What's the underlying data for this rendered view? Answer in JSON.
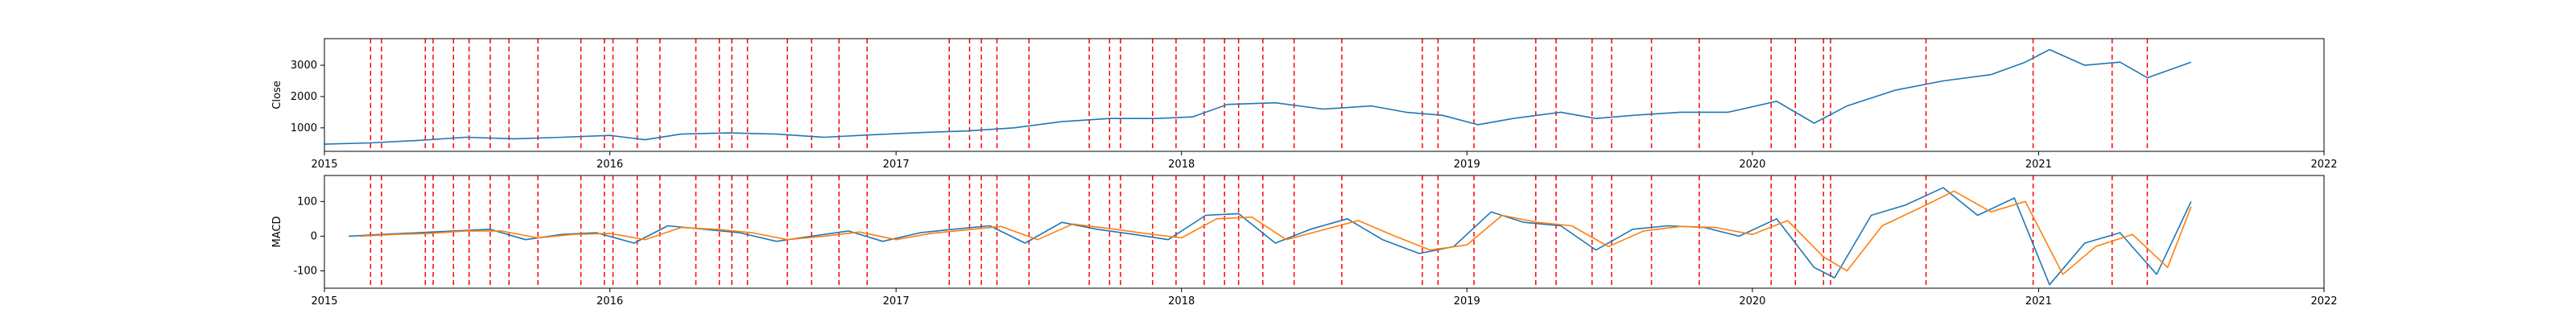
{
  "chart_data": [
    {
      "type": "line",
      "ylabel": "Close",
      "xlim": [
        "2015-01-01",
        "2022-01-01"
      ],
      "ylim": [
        250,
        3850
      ],
      "yticks": [
        1000,
        2000,
        3000
      ],
      "xtick_labels": [
        "2015",
        "2016",
        "2017",
        "2018",
        "2019",
        "2020",
        "2021",
        "2022"
      ],
      "grid": false,
      "series": [
        {
          "color": "#1f77b4",
          "x": [
            "2015-01-01",
            "2015-03-01",
            "2015-05-01",
            "2015-07-01",
            "2015-09-01",
            "2015-11-01",
            "2016-01-01",
            "2016-02-15",
            "2016-04-01",
            "2016-06-01",
            "2016-08-01",
            "2016-10-01",
            "2016-12-01",
            "2017-02-01",
            "2017-04-01",
            "2017-06-01",
            "2017-08-01",
            "2017-10-01",
            "2017-12-01",
            "2018-01-15",
            "2018-03-01",
            "2018-05-01",
            "2018-07-01",
            "2018-09-01",
            "2018-10-15",
            "2018-12-01",
            "2019-01-15",
            "2019-03-01",
            "2019-05-01",
            "2019-06-15",
            "2019-08-01",
            "2019-10-01",
            "2019-12-01",
            "2020-02-01",
            "2020-03-20",
            "2020-05-01",
            "2020-07-01",
            "2020-09-01",
            "2020-11-01",
            "2020-12-15",
            "2021-01-15",
            "2021-03-01",
            "2021-04-15",
            "2021-05-20",
            "2021-07-15"
          ],
          "values": [
            480,
            520,
            600,
            700,
            650,
            700,
            760,
            620,
            800,
            840,
            800,
            700,
            780,
            850,
            900,
            1000,
            1200,
            1300,
            1300,
            1350,
            1750,
            1800,
            1600,
            1700,
            1500,
            1400,
            1100,
            1300,
            1500,
            1300,
            1400,
            1500,
            1500,
            1850,
            1150,
            1700,
            2200,
            2500,
            2700,
            3100,
            3500,
            3000,
            3100,
            2600,
            3100
          ]
        }
      ],
      "event_lines": [
        "2015-03-01",
        "2015-03-15",
        "2015-05-10",
        "2015-05-20",
        "2015-06-15",
        "2015-07-05",
        "2015-08-01",
        "2015-08-25",
        "2015-10-01",
        "2015-11-25",
        "2015-12-25",
        "2016-01-05",
        "2016-02-05",
        "2016-03-05",
        "2016-04-20",
        "2016-05-20",
        "2016-06-05",
        "2016-06-25",
        "2016-08-15",
        "2016-09-15",
        "2016-10-20",
        "2016-11-25",
        "2017-03-10",
        "2017-04-05",
        "2017-04-20",
        "2017-05-10",
        "2017-06-20",
        "2017-09-05",
        "2017-10-01",
        "2017-10-15",
        "2017-11-25",
        "2017-12-25",
        "2018-01-30",
        "2018-02-25",
        "2018-03-15",
        "2018-04-15",
        "2018-05-25",
        "2018-07-25",
        "2018-11-05",
        "2018-11-25",
        "2019-01-10",
        "2019-03-30",
        "2019-04-25",
        "2019-06-10",
        "2019-07-05",
        "2019-08-25",
        "2019-10-25",
        "2020-01-25",
        "2020-02-25",
        "2020-04-01",
        "2020-04-10",
        "2020-08-10",
        "2020-12-25",
        "2021-04-05",
        "2021-05-20"
      ]
    },
    {
      "type": "line",
      "ylabel": "MACD",
      "xlim": [
        "2015-01-01",
        "2022-01-01"
      ],
      "ylim": [
        -150,
        175
      ],
      "yticks": [
        -100,
        0,
        100
      ],
      "xtick_labels": [
        "2015",
        "2016",
        "2017",
        "2018",
        "2019",
        "2020",
        "2021",
        "2022"
      ],
      "grid": false,
      "series": [
        {
          "color": "#1f77b4",
          "x": [
            "2015-02-01",
            "2015-03-15",
            "2015-05-01",
            "2015-06-15",
            "2015-08-01",
            "2015-09-15",
            "2015-11-01",
            "2015-12-15",
            "2016-02-01",
            "2016-03-15",
            "2016-05-01",
            "2016-06-15",
            "2016-08-01",
            "2016-09-15",
            "2016-11-01",
            "2016-12-15",
            "2017-02-01",
            "2017-03-15",
            "2017-05-01",
            "2017-06-15",
            "2017-08-01",
            "2017-09-15",
            "2017-11-01",
            "2017-12-15",
            "2018-02-01",
            "2018-03-15",
            "2018-05-01",
            "2018-06-15",
            "2018-08-01",
            "2018-09-15",
            "2018-11-01",
            "2018-12-15",
            "2019-02-01",
            "2019-03-15",
            "2019-05-01",
            "2019-06-15",
            "2019-08-01",
            "2019-09-15",
            "2019-11-01",
            "2019-12-15",
            "2020-02-01",
            "2020-03-20",
            "2020-04-15",
            "2020-06-01",
            "2020-07-15",
            "2020-09-01",
            "2020-10-15",
            "2020-12-01",
            "2021-01-15",
            "2021-03-01",
            "2021-04-15",
            "2021-06-01",
            "2021-07-15"
          ],
          "values": [
            0,
            5,
            10,
            15,
            20,
            -10,
            5,
            10,
            -20,
            30,
            20,
            10,
            -15,
            0,
            15,
            -15,
            10,
            20,
            30,
            -20,
            40,
            20,
            5,
            -10,
            60,
            65,
            -20,
            20,
            50,
            -10,
            -50,
            -30,
            70,
            40,
            30,
            -40,
            20,
            30,
            25,
            0,
            50,
            -90,
            -120,
            60,
            90,
            140,
            60,
            110,
            -140,
            -20,
            10,
            -110,
            100
          ]
        },
        {
          "color": "#ff7f0e",
          "x": [
            "2015-02-15",
            "2015-04-01",
            "2015-05-15",
            "2015-07-01",
            "2015-08-15",
            "2015-10-01",
            "2015-11-15",
            "2016-01-01",
            "2016-02-15",
            "2016-04-01",
            "2016-05-15",
            "2016-07-01",
            "2016-08-15",
            "2016-10-01",
            "2016-11-15",
            "2017-01-01",
            "2017-02-15",
            "2017-04-01",
            "2017-05-15",
            "2017-07-01",
            "2017-08-15",
            "2017-10-01",
            "2017-11-15",
            "2018-01-01",
            "2018-02-15",
            "2018-04-01",
            "2018-05-15",
            "2018-07-01",
            "2018-08-15",
            "2018-10-01",
            "2018-11-15",
            "2019-01-01",
            "2019-02-15",
            "2019-04-01",
            "2019-05-15",
            "2019-07-01",
            "2019-08-15",
            "2019-10-01",
            "2019-11-15",
            "2020-01-01",
            "2020-02-15",
            "2020-04-01",
            "2020-05-01",
            "2020-06-15",
            "2020-08-01",
            "2020-09-15",
            "2020-11-01",
            "2020-12-15",
            "2021-02-01",
            "2021-03-15",
            "2021-05-01",
            "2021-06-15",
            "2021-07-15"
          ],
          "values": [
            0,
            5,
            8,
            15,
            15,
            -5,
            5,
            8,
            -10,
            25,
            20,
            10,
            -10,
            0,
            12,
            -10,
            8,
            18,
            28,
            -10,
            35,
            22,
            8,
            -5,
            50,
            55,
            -10,
            18,
            45,
            0,
            -40,
            -25,
            60,
            40,
            30,
            -30,
            15,
            28,
            25,
            5,
            45,
            -60,
            -100,
            30,
            80,
            130,
            70,
            100,
            -110,
            -30,
            5,
            -90,
            85
          ]
        }
      ],
      "event_lines": [
        "2015-03-01",
        "2015-03-15",
        "2015-05-10",
        "2015-05-20",
        "2015-06-15",
        "2015-07-05",
        "2015-08-01",
        "2015-08-25",
        "2015-10-01",
        "2015-11-25",
        "2015-12-25",
        "2016-01-05",
        "2016-02-05",
        "2016-03-05",
        "2016-04-20",
        "2016-05-20",
        "2016-06-05",
        "2016-06-25",
        "2016-08-15",
        "2016-09-15",
        "2016-10-20",
        "2016-11-25",
        "2017-03-10",
        "2017-04-05",
        "2017-04-20",
        "2017-05-10",
        "2017-06-20",
        "2017-09-05",
        "2017-10-01",
        "2017-10-15",
        "2017-11-25",
        "2017-12-25",
        "2018-01-30",
        "2018-02-25",
        "2018-03-15",
        "2018-04-15",
        "2018-05-25",
        "2018-07-25",
        "2018-11-05",
        "2018-11-25",
        "2019-01-10",
        "2019-03-30",
        "2019-04-25",
        "2019-06-10",
        "2019-07-05",
        "2019-08-25",
        "2019-10-25",
        "2020-01-25",
        "2020-02-25",
        "2020-04-01",
        "2020-04-10",
        "2020-08-10",
        "2020-12-25",
        "2021-04-05",
        "2021-05-20"
      ]
    }
  ],
  "colors": {
    "event_line": "#ff0000",
    "axis": "#000000",
    "background": "#ffffff"
  }
}
